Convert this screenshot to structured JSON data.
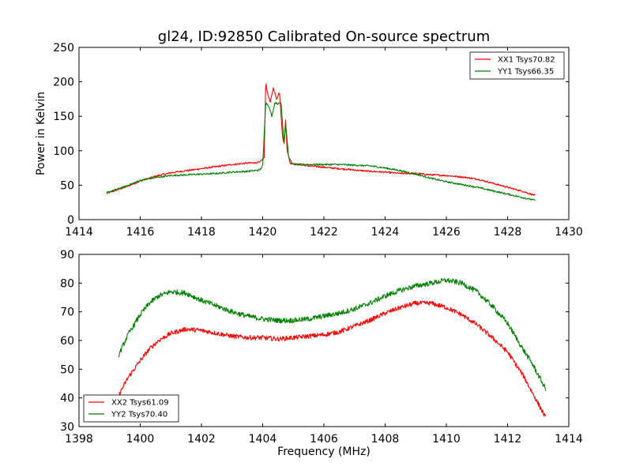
{
  "chart_data": [
    {
      "type": "line",
      "title": "gl24, ID:92850 Calibrated On-source spectrum",
      "xlabel": "",
      "ylabel": "Power in Kelvin",
      "xlim": [
        1414,
        1430
      ],
      "ylim": [
        0,
        250
      ],
      "xticks": [
        1414,
        1416,
        1418,
        1420,
        1422,
        1424,
        1426,
        1428,
        1430
      ],
      "xtick_labels": [
        "1414",
        "1416",
        "1418",
        "1420",
        "1422",
        "1424",
        "1426",
        "1428",
        "1430"
      ],
      "yticks": [
        0,
        50,
        100,
        150,
        200,
        250
      ],
      "ytick_labels": [
        "0",
        "50",
        "100",
        "150",
        "200",
        "250"
      ],
      "grid": false,
      "legend_position": "top-right",
      "series": [
        {
          "name": "XX1 Tsys70.82",
          "color": "#ff0000",
          "noise": 1.2,
          "x": [
            1414.9,
            1415.5,
            1416.0,
            1416.5,
            1417.0,
            1417.5,
            1418.0,
            1418.5,
            1419.0,
            1419.5,
            1419.9,
            1420.05,
            1420.1,
            1420.15,
            1420.25,
            1420.35,
            1420.45,
            1420.55,
            1420.65,
            1420.7,
            1420.75,
            1420.8,
            1420.9,
            1421.0,
            1421.5,
            1422.0,
            1422.5,
            1423.0,
            1423.5,
            1424.0,
            1424.5,
            1425.0,
            1425.5,
            1426.0,
            1426.5,
            1427.0,
            1427.5,
            1428.0,
            1428.5,
            1428.9
          ],
          "y": [
            38,
            47,
            56,
            63,
            68,
            71,
            74,
            77,
            80,
            82,
            83,
            90,
            200,
            185,
            170,
            192,
            175,
            185,
            120,
            110,
            145,
            100,
            82,
            81,
            78,
            76,
            74,
            72,
            70,
            69,
            67,
            67,
            65,
            64,
            62,
            59,
            53,
            47,
            41,
            35
          ]
        },
        {
          "name": "YY1 Tsys66.35",
          "color": "#008000",
          "noise": 1.2,
          "x": [
            1414.9,
            1415.5,
            1416.0,
            1416.5,
            1417.0,
            1417.5,
            1418.0,
            1418.5,
            1419.0,
            1419.5,
            1419.9,
            1420.0,
            1420.1,
            1420.2,
            1420.3,
            1420.4,
            1420.5,
            1420.6,
            1420.7,
            1420.75,
            1420.85,
            1421.0,
            1421.5,
            1422.0,
            1422.5,
            1423.0,
            1423.5,
            1424.0,
            1424.5,
            1425.0,
            1425.5,
            1426.0,
            1426.5,
            1427.0,
            1427.5,
            1428.0,
            1428.5,
            1428.9
          ],
          "y": [
            39,
            48,
            57,
            61,
            64,
            65,
            66,
            67,
            69,
            70,
            72,
            78,
            170,
            165,
            150,
            170,
            168,
            170,
            110,
            140,
            90,
            80,
            80,
            80,
            80,
            79,
            78,
            75,
            71,
            66,
            60,
            55,
            51,
            47,
            42,
            37,
            32,
            28
          ]
        }
      ]
    },
    {
      "type": "line",
      "title": "",
      "xlabel": "Frequency (MHz)",
      "ylabel": "",
      "xlim": [
        1398,
        1414
      ],
      "ylim": [
        30,
        90
      ],
      "xticks": [
        1398,
        1400,
        1402,
        1404,
        1406,
        1408,
        1410,
        1412,
        1414
      ],
      "xtick_labels": [
        "1398",
        "1400",
        "1402",
        "1404",
        "1406",
        "1408",
        "1410",
        "1412",
        "1414"
      ],
      "yticks": [
        30,
        40,
        50,
        60,
        70,
        80,
        90
      ],
      "ytick_labels": [
        "30",
        "40",
        "50",
        "60",
        "70",
        "80",
        "90"
      ],
      "grid": false,
      "legend_position": "bottom-left",
      "series": [
        {
          "name": "XX2 Tsys61.09",
          "color": "#ff0000",
          "noise": 0.8,
          "x": [
            1399.3,
            1399.6,
            1400.0,
            1400.3,
            1400.6,
            1401.0,
            1401.5,
            1402.0,
            1402.5,
            1403.0,
            1403.5,
            1404.0,
            1404.5,
            1405.0,
            1405.5,
            1406.0,
            1406.5,
            1407.0,
            1407.5,
            1408.0,
            1408.5,
            1409.0,
            1409.5,
            1410.0,
            1410.5,
            1411.0,
            1411.5,
            1412.0,
            1412.5,
            1412.8,
            1413.0,
            1413.25
          ],
          "y": [
            41,
            47,
            53,
            57,
            60,
            62.5,
            64,
            63.5,
            62.5,
            61.5,
            61,
            61,
            60.5,
            61,
            61.5,
            62,
            63,
            65,
            67,
            69.5,
            71.5,
            73,
            73,
            71.5,
            69,
            65.5,
            61,
            56,
            48,
            42,
            38,
            33
          ]
        },
        {
          "name": "YY2 Tsys70.40",
          "color": "#008000",
          "noise": 0.9,
          "x": [
            1399.3,
            1399.6,
            1400.0,
            1400.3,
            1400.6,
            1401.0,
            1401.5,
            1402.0,
            1402.5,
            1403.0,
            1403.5,
            1404.0,
            1404.5,
            1405.0,
            1405.5,
            1406.0,
            1406.5,
            1407.0,
            1407.5,
            1408.0,
            1408.5,
            1409.0,
            1409.5,
            1410.0,
            1410.5,
            1411.0,
            1411.5,
            1412.0,
            1412.5,
            1412.8,
            1413.0,
            1413.25
          ],
          "y": [
            55,
            62,
            69,
            73,
            75.5,
            77,
            76.5,
            74,
            72,
            70,
            68.5,
            67.5,
            67,
            67,
            67.5,
            68.5,
            69.5,
            71,
            73,
            75.5,
            77.5,
            79,
            80,
            81,
            80,
            77,
            72,
            66,
            57,
            52,
            48,
            43
          ]
        }
      ]
    }
  ]
}
